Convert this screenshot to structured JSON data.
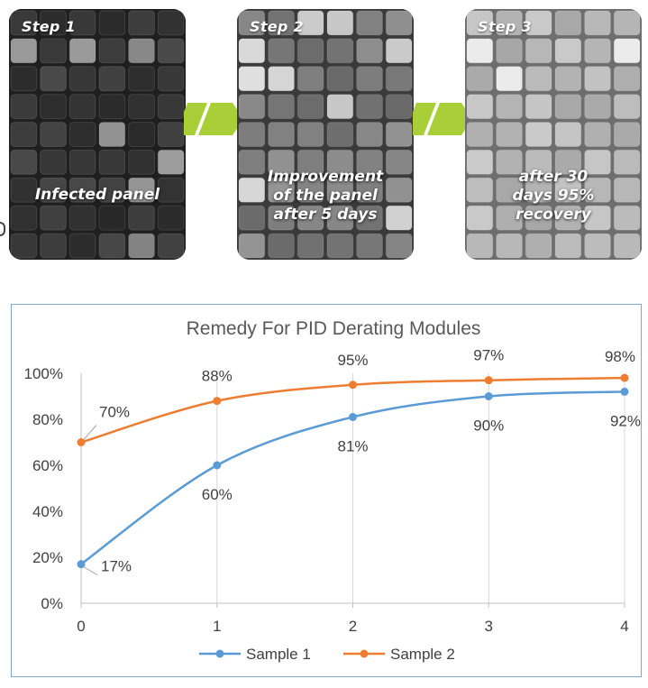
{
  "steps": [
    {
      "label": "Step 1",
      "caption_lines": [
        "Infected panel"
      ]
    },
    {
      "label": "Step 2",
      "caption_lines": [
        "Improvement",
        "of the panel",
        "after 5 days"
      ]
    },
    {
      "label": "Step 3",
      "caption_lines": [
        "after 30",
        "days 95%",
        "recovery"
      ]
    }
  ],
  "colors": {
    "arrow": "#a8cf38",
    "series1": "#5b9bd5",
    "series2": "#ed7d31",
    "frame": "#7fa7d6"
  },
  "chart_data": {
    "type": "line",
    "title": "Remedy For PID Derating Modules",
    "xlabel": "",
    "ylabel": "",
    "x": [
      0,
      1,
      2,
      3,
      4
    ],
    "x_tick_labels": [
      "0",
      "1",
      "2",
      "3",
      "4"
    ],
    "y_tick_labels": [
      "0%",
      "20%",
      "40%",
      "60%",
      "80%",
      "100%"
    ],
    "ylim": [
      0,
      100
    ],
    "grid": "vertical",
    "smooth": true,
    "legend_position": "bottom",
    "series": [
      {
        "name": "Sample 1",
        "values": [
          17,
          60,
          81,
          90,
          92
        ],
        "labels": [
          "17%",
          "60%",
          "81%",
          "90%",
          "92%"
        ],
        "label_position": "below"
      },
      {
        "name": "Sample 2",
        "values": [
          70,
          88,
          95,
          97,
          98
        ],
        "labels": [
          "70%",
          "88%",
          "95%",
          "97%",
          "98%"
        ],
        "label_position": "above"
      }
    ]
  }
}
